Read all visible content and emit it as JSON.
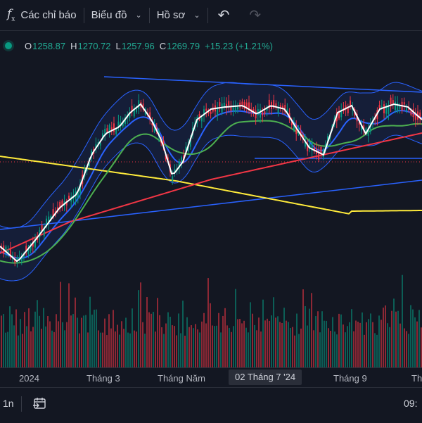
{
  "toolbar": {
    "fx_symbol": "f",
    "fx_sub": "x",
    "indicators_label": "Các chỉ báo",
    "chart_label": "Biểu đồ",
    "profile_label": "Hồ sơ",
    "undo_icon": "undo-icon",
    "redo_icon": "redo-icon"
  },
  "ohlc": {
    "o_label": "O",
    "o_value": "1258.87",
    "h_label": "H",
    "h_value": "1270.72",
    "l_label": "L",
    "l_value": "1257.96",
    "c_label": "C",
    "c_value": "1269.79",
    "change": "+15.23 (+1.21%)",
    "status_color": "#089981"
  },
  "timeaxis": {
    "ticks": [
      "2024",
      "Tháng 3",
      "Tháng Năm",
      "Tháng 9",
      "Th"
    ],
    "highlight": "02 Tháng 7 '24"
  },
  "bottom": {
    "interval": "1n",
    "calendar_icon": "calendar-goto-icon",
    "time": "09:"
  },
  "colors": {
    "up": "#089981",
    "down": "#f23645",
    "bollinger": "#2962ff",
    "ema_fast": "#ffffff",
    "ema_mid": "#4caf50",
    "ema_slow": "#f23645",
    "ema_long": "#ffeb3b",
    "trendline": "#2962ff"
  },
  "chart_data": {
    "type": "candlestick",
    "price_ref": {
      "open": 1258.87,
      "high": 1270.72,
      "low": 1257.96,
      "close": 1269.79
    },
    "period": "2024-01 .. 2024-10",
    "indicators": [
      "Bollinger Bands",
      "EMA fast (white)",
      "EMA mid (green)",
      "EMA slow (red)",
      "EMA long (yellow)",
      "Volume"
    ],
    "trendlines": [
      "upper channel",
      "lower channel",
      "support horizontal"
    ]
  }
}
